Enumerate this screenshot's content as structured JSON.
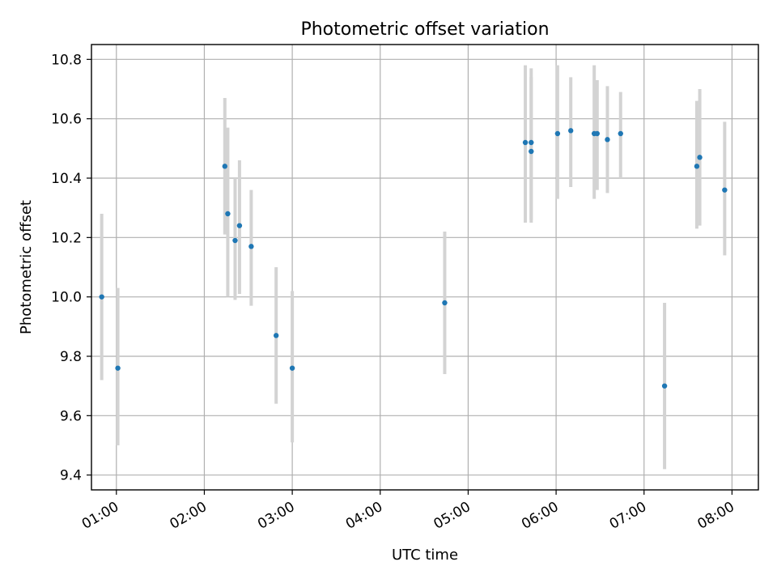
{
  "chart_data": {
    "type": "scatter",
    "title": "Photometric offset variation",
    "xlabel": "UTC time",
    "ylabel": "Photometric offset",
    "x_axis_kind": "time",
    "xlim": [
      "00:43",
      "08:18"
    ],
    "ylim": [
      9.35,
      10.85
    ],
    "xticks": [
      "01:00",
      "02:00",
      "03:00",
      "04:00",
      "05:00",
      "06:00",
      "07:00",
      "08:00"
    ],
    "yticks": [
      "9.4",
      "9.6",
      "9.8",
      "10.0",
      "10.2",
      "10.4",
      "10.6",
      "10.8"
    ],
    "grid": true,
    "point_color": "#1f77b4",
    "errorbar_color": "#d3d3d3",
    "points": [
      {
        "x": "00:50",
        "y": 10.0,
        "yerr_low": 9.72,
        "yerr_high": 10.28
      },
      {
        "x": "01:01",
        "y": 9.76,
        "yerr_low": 9.5,
        "yerr_high": 10.03
      },
      {
        "x": "02:14",
        "y": 10.44,
        "yerr_low": 10.21,
        "yerr_high": 10.67
      },
      {
        "x": "02:16",
        "y": 10.28,
        "yerr_low": 10.0,
        "yerr_high": 10.57
      },
      {
        "x": "02:21",
        "y": 10.19,
        "yerr_low": 9.99,
        "yerr_high": 10.4
      },
      {
        "x": "02:24",
        "y": 10.24,
        "yerr_low": 10.01,
        "yerr_high": 10.46
      },
      {
        "x": "02:32",
        "y": 10.17,
        "yerr_low": 9.97,
        "yerr_high": 10.36
      },
      {
        "x": "02:49",
        "y": 9.87,
        "yerr_low": 9.64,
        "yerr_high": 10.1
      },
      {
        "x": "03:00",
        "y": 9.76,
        "yerr_low": 9.51,
        "yerr_high": 10.02
      },
      {
        "x": "04:44",
        "y": 9.98,
        "yerr_low": 9.74,
        "yerr_high": 10.22
      },
      {
        "x": "05:39",
        "y": 10.52,
        "yerr_low": 10.25,
        "yerr_high": 10.78
      },
      {
        "x": "05:43",
        "y": 10.52,
        "yerr_low": 10.26,
        "yerr_high": 10.77
      },
      {
        "x": "05:43",
        "y": 10.49,
        "yerr_low": 10.25,
        "yerr_high": 10.74
      },
      {
        "x": "06:01",
        "y": 10.55,
        "yerr_low": 10.33,
        "yerr_high": 10.78
      },
      {
        "x": "06:10",
        "y": 10.56,
        "yerr_low": 10.37,
        "yerr_high": 10.74
      },
      {
        "x": "06:26",
        "y": 10.55,
        "yerr_low": 10.33,
        "yerr_high": 10.78
      },
      {
        "x": "06:28",
        "y": 10.55,
        "yerr_low": 10.36,
        "yerr_high": 10.73
      },
      {
        "x": "06:35",
        "y": 10.53,
        "yerr_low": 10.35,
        "yerr_high": 10.71
      },
      {
        "x": "06:44",
        "y": 10.55,
        "yerr_low": 10.4,
        "yerr_high": 10.69
      },
      {
        "x": "07:14",
        "y": 9.7,
        "yerr_low": 9.42,
        "yerr_high": 9.98
      },
      {
        "x": "07:36",
        "y": 10.44,
        "yerr_low": 10.23,
        "yerr_high": 10.66
      },
      {
        "x": "07:38",
        "y": 10.47,
        "yerr_low": 10.24,
        "yerr_high": 10.7
      },
      {
        "x": "07:55",
        "y": 10.36,
        "yerr_low": 10.14,
        "yerr_high": 10.59
      }
    ]
  }
}
